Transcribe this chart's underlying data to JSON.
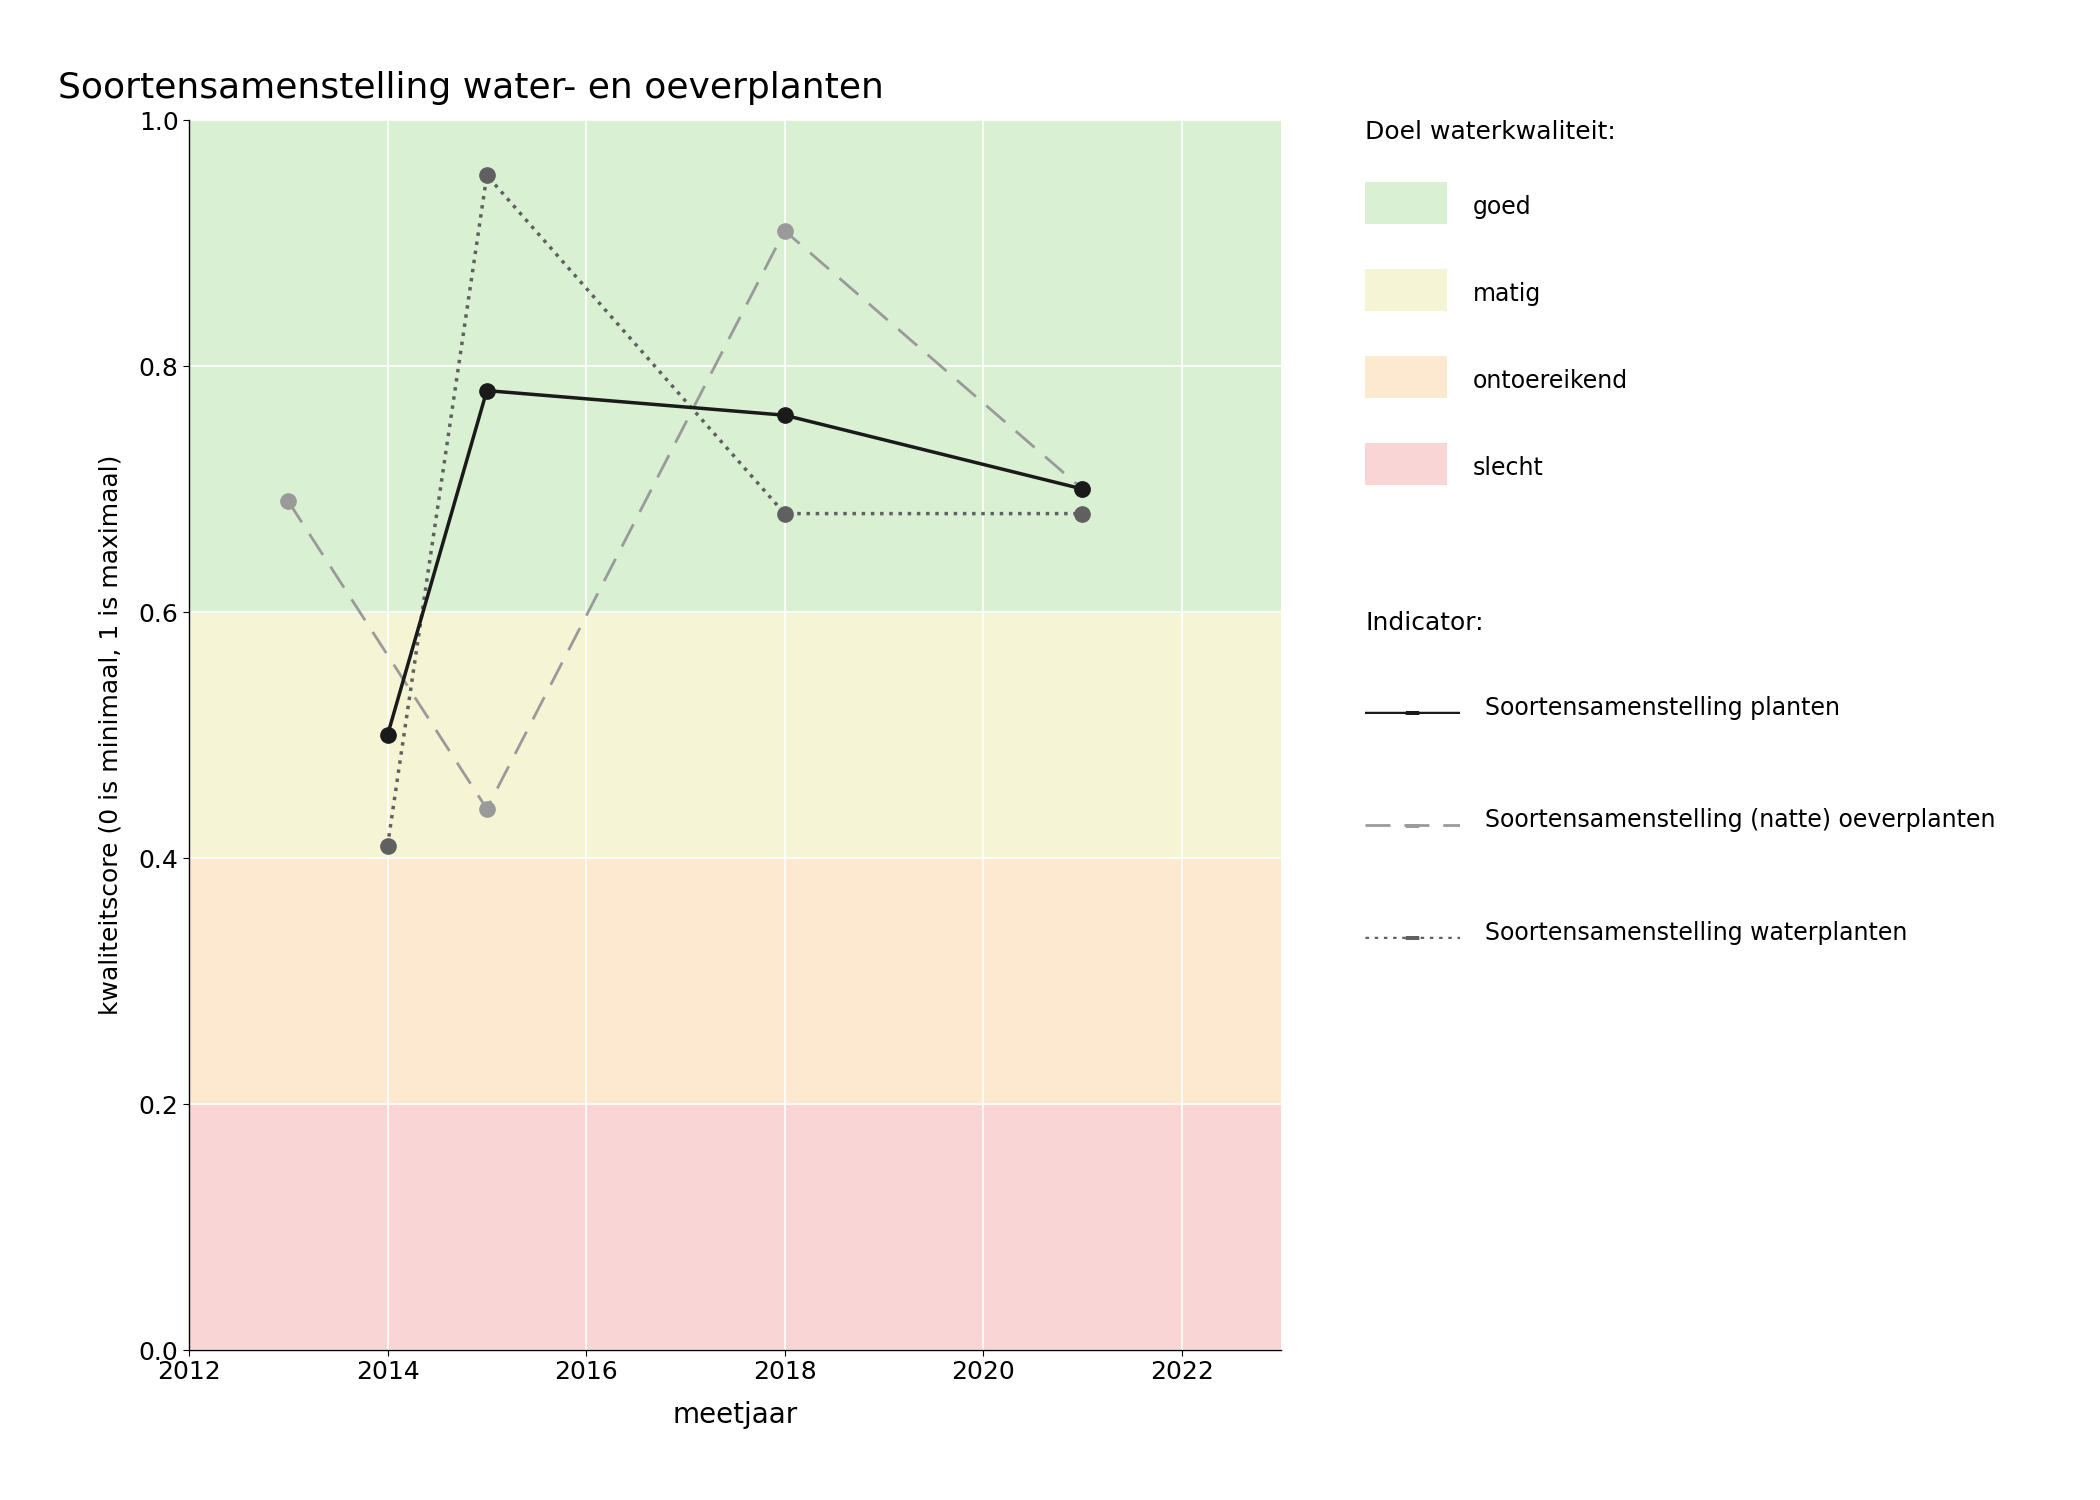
{
  "title": "Soortensamenstelling water- en oeverplanten",
  "xlabel": "meetjaar",
  "ylabel": "kwaliteitscore (0 is minimaal, 1 is maximaal)",
  "xlim": [
    2012,
    2023
  ],
  "ylim": [
    0.0,
    1.0
  ],
  "xticks": [
    2012,
    2014,
    2016,
    2018,
    2020,
    2022
  ],
  "yticks": [
    0.0,
    0.2,
    0.4,
    0.6,
    0.8,
    1.0
  ],
  "bg_colors": {
    "goed": {
      "ymin": 0.6,
      "ymax": 1.0,
      "color": "#d9f0d3"
    },
    "matig": {
      "ymin": 0.4,
      "ymax": 0.6,
      "color": "#f5f5d5"
    },
    "ontoereikend": {
      "ymin": 0.2,
      "ymax": 0.4,
      "color": "#fde8d0"
    },
    "slecht": {
      "ymin": 0.0,
      "ymax": 0.2,
      "color": "#fad5d5"
    }
  },
  "series_planten": {
    "label": "Soortensamenstelling planten",
    "x": [
      2014,
      2015,
      2018,
      2021
    ],
    "y": [
      0.5,
      0.78,
      0.76,
      0.7
    ],
    "color": "#1a1a1a",
    "linestyle": "solid",
    "linewidth": 2.5,
    "markersize": 11
  },
  "series_oeverplanten": {
    "label": "Soortensamenstelling (natte) oeverplanten",
    "x": [
      2013,
      2015,
      2018,
      2021
    ],
    "y": [
      0.69,
      0.44,
      0.91,
      0.7
    ],
    "color": "#9a9a9a",
    "linewidth": 2.0,
    "markersize": 11
  },
  "series_waterplanten": {
    "label": "Soortensamenstelling waterplanten",
    "x": [
      2014,
      2015,
      2018,
      2021
    ],
    "y": [
      0.41,
      0.955,
      0.68,
      0.68
    ],
    "color": "#606060",
    "linewidth": 2.5,
    "markersize": 11
  },
  "legend_title_doel": "Doel waterkwaliteit:",
  "legend_title_indicator": "Indicator:",
  "legend_kwaliteit": [
    {
      "label": "goed",
      "color": "#d9f0d3"
    },
    {
      "label": "matig",
      "color": "#f5f5d5"
    },
    {
      "label": "ontoereikend",
      "color": "#fde8d0"
    },
    {
      "label": "slecht",
      "color": "#fad5d5"
    }
  ]
}
